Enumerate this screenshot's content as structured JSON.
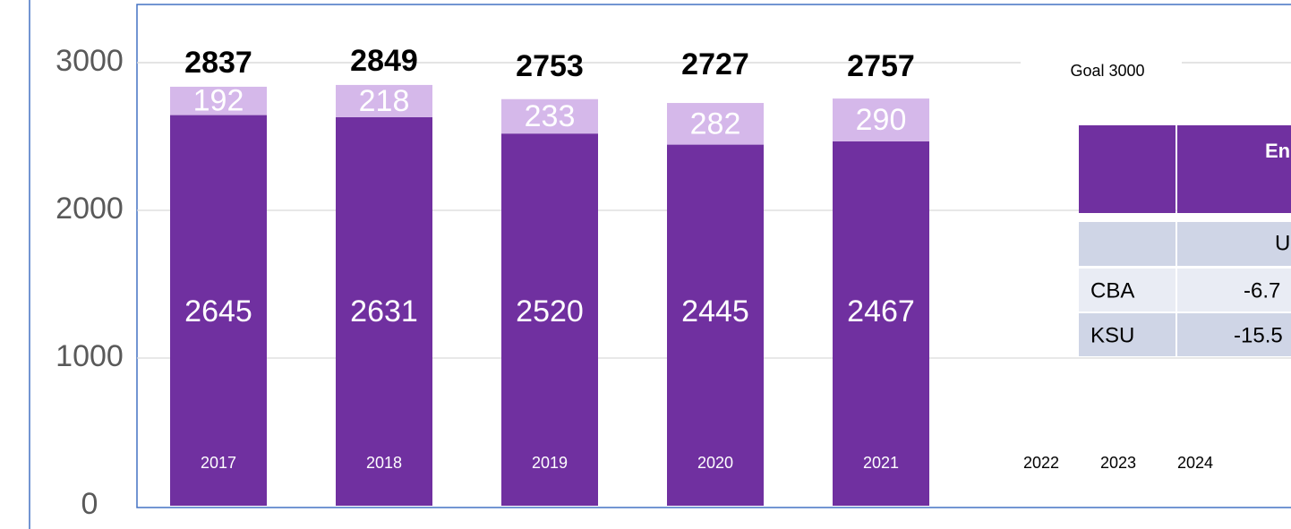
{
  "chart_data": {
    "type": "stacked-bar",
    "categories": [
      "2017",
      "2018",
      "2019",
      "2020",
      "2021",
      "2022",
      "2023",
      "2024"
    ],
    "series": [
      {
        "color": "#7030a0",
        "values": [
          2645,
          2631,
          2520,
          2445,
          2467,
          null,
          null,
          null
        ]
      },
      {
        "color": "#d5b8ea",
        "values": [
          192,
          218,
          233,
          282,
          290,
          null,
          null,
          null
        ]
      }
    ],
    "totals": [
      2837,
      2849,
      2753,
      2727,
      2757,
      null,
      null,
      null
    ],
    "goal": 3000,
    "goal_label": "Goal 3000",
    "ylim": [
      0,
      3400
    ],
    "yticks": [
      0,
      1000,
      2000,
      3000
    ],
    "grid": true
  },
  "table": {
    "header": "En",
    "subheader": "U",
    "rows": [
      [
        "CBA",
        "-6.7"
      ],
      [
        "KSU",
        "-15.5"
      ]
    ]
  }
}
